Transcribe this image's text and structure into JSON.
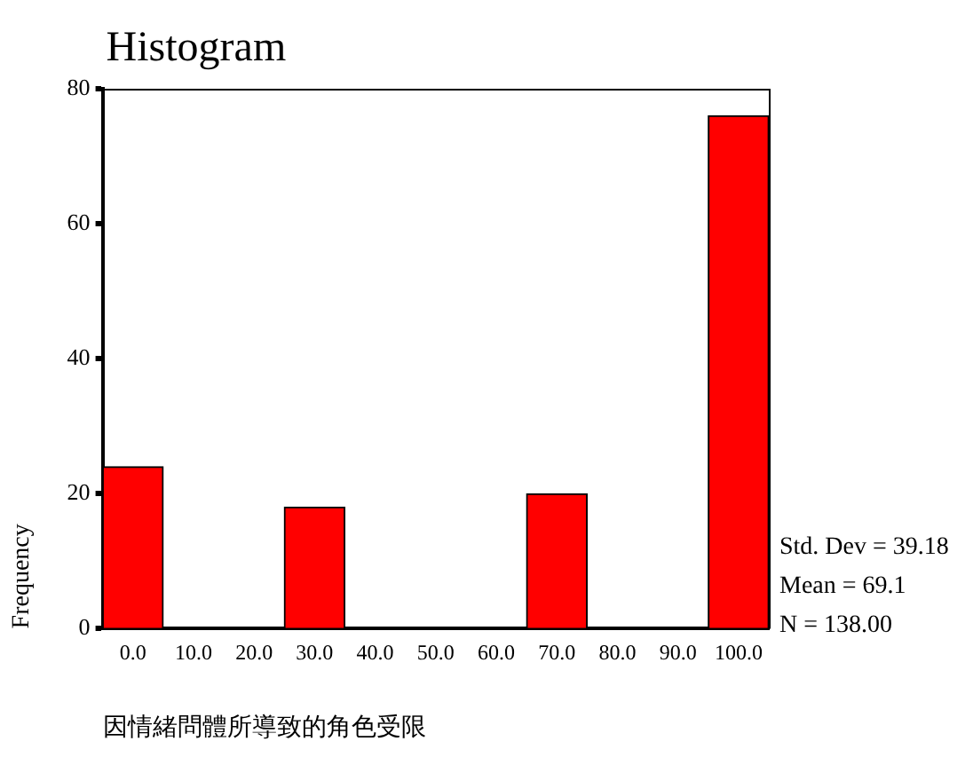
{
  "chart_data": {
    "type": "histogram",
    "title": "Histogram",
    "xlabel": "因情緒問體所導致的角色受限",
    "ylabel": "Frequency",
    "bins": [
      -5,
      5,
      15,
      25,
      35,
      45,
      55,
      65,
      75,
      85,
      95,
      105
    ],
    "values": [
      24,
      0,
      0,
      18,
      0,
      0,
      0,
      20,
      0,
      0,
      76
    ],
    "color": "#ff0000",
    "xlim": [
      -5,
      105
    ],
    "xticks": [
      {
        "value": 0,
        "label": "0.0"
      },
      {
        "value": 10,
        "label": "10.0"
      },
      {
        "value": 20,
        "label": "20.0"
      },
      {
        "value": 30,
        "label": "30.0"
      },
      {
        "value": 40,
        "label": "40.0"
      },
      {
        "value": 50,
        "label": "50.0"
      },
      {
        "value": 60,
        "label": "60.0"
      },
      {
        "value": 70,
        "label": "70.0"
      },
      {
        "value": 80,
        "label": "80.0"
      },
      {
        "value": 90,
        "label": "90.0"
      },
      {
        "value": 100,
        "label": "100.0"
      }
    ],
    "ylim": [
      0,
      80
    ],
    "yticks": [
      0,
      20,
      40,
      60,
      80
    ],
    "grid": false,
    "legend": false,
    "annotations": [
      "Std. Dev = 39.18",
      "Mean = 69.1",
      "N = 138.00"
    ]
  }
}
